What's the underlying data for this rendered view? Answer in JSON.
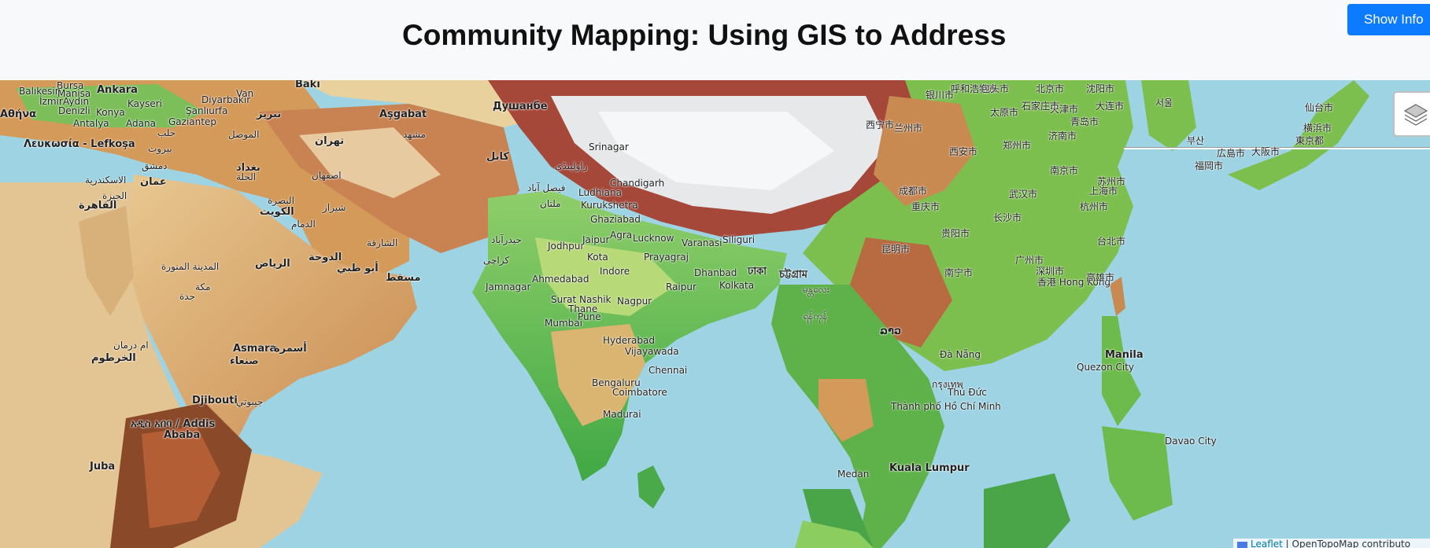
{
  "header": {
    "title": "Community Mapping: Using GIS to Address",
    "info_button": "Show Info"
  },
  "map": {
    "layers_control": "layers-icon",
    "attribution": {
      "leaflet": "Leaflet",
      "separator": " | ",
      "source": "OpenTopoMap contributo"
    },
    "labels": [
      "Bursa",
      "Balıkesir",
      "Manisa",
      "İzmir",
      "Aydın",
      "Denizli",
      "Ankara",
      "Kayseri",
      "Konya",
      "Antalya",
      "Adana",
      "Gaziantep",
      "Şanlıurfa",
      "Diyarbakır",
      "Van",
      "Bakı",
      "Αθήνα",
      "Λευκωσία - Lefkoşa",
      "حلب",
      "بيروت",
      "دمشق",
      "عمان",
      "بغداد",
      "الحلة",
      "الموصل",
      "تبريز",
      "تهران",
      "اصفهان",
      "شيراز",
      "مشهد",
      "الاسكندرية",
      "القاهرة",
      "الجيزة",
      "الكويت",
      "البصرة",
      "الدمام",
      "الرياض",
      "المدينة المنورة",
      "مكة",
      "جدة",
      "الدوحة",
      "أبو ظبي",
      "الشارقة",
      "مسقط",
      "Aşgabat",
      "Душанбе",
      "کابل",
      "Srinagar",
      "ملتان",
      "راولپنڈی",
      "فیصل آباد",
      "Chandigarh",
      "Ludhiana",
      "Kurukshetra",
      "Ghaziabad",
      "Agra",
      "Lucknow",
      "Jodhpur",
      "Jaipur",
      "Kota",
      "Varanasi",
      "Siliguri",
      "Prayagraj",
      "Indore",
      "Dhanbad",
      "Kolkata",
      "Ahmedabad",
      "Raipur",
      "Jamnagar",
      "کراچی",
      "حیدرآباد",
      "Surat",
      "Nashik",
      "Thane",
      "Pune",
      "Mumbai",
      "Nagpur",
      "Hyderabad",
      "Vijayawada",
      "Chennai",
      "Bengaluru",
      "Coimbatore",
      "Madurai",
      "ام درمان",
      "الخرطوم",
      "Asmara",
      "أسمرة",
      "صنعاء",
      "Djibouti",
      "جيبوتي",
      "አዲስ አበባ / Addis",
      "Ababa",
      "Juba",
      "ঢাকা",
      "চট্টগ্রাম",
      "ရန်ကုန်",
      "မန္တလေး",
      "ລາວ",
      "กรุงเทพ",
      "Đà Nẵng",
      "Thủ Đức",
      "Thành phố Hồ Chí Minh",
      "Kuala Lumpur",
      "Medan",
      "重庆市",
      "成都市",
      "西宁市",
      "兰州市",
      "银川市",
      "西安市",
      "郑州市",
      "武汉市",
      "长沙市",
      "贵阳市",
      "昆明市",
      "南宁市",
      "广州市",
      "深圳市",
      "香港 Hong Kong",
      "台北市",
      "高雄市",
      "上海市",
      "南京市",
      "杭州市",
      "苏州市",
      "北京市",
      "天津市",
      "大连市",
      "沈阳市",
      "济南市",
      "青岛市",
      "太原市",
      "石家庄市",
      "呼和浩特市",
      "包头市",
      "Manila",
      "Quezon City",
      "Davao City",
      "福岡市",
      "広島市",
      "大阪市",
      "東京都",
      "仙台市",
      "横浜市",
      "서울",
      "부산"
    ]
  }
}
